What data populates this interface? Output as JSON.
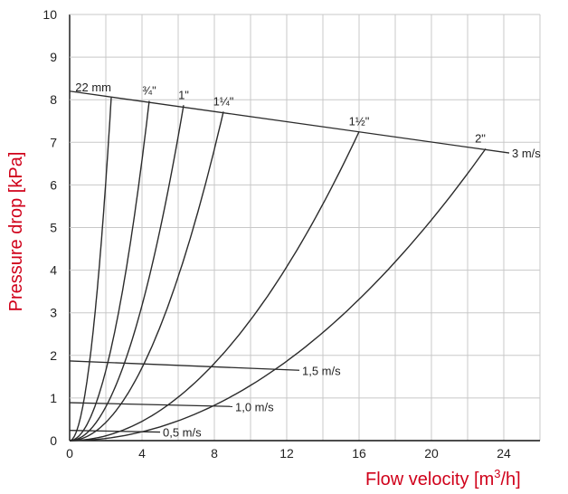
{
  "colors": {
    "axis_title": "#d0021b",
    "grid": "#c8c8c8",
    "curve": "#2b2b2b",
    "text": "#222222"
  },
  "chart_data": {
    "type": "line",
    "title": "",
    "xlabel": "Flow velocity [m³/h]",
    "xlabel_main": "Flow velocity [m",
    "xlabel_sup": "3",
    "xlabel_tail": "/h]",
    "ylabel": "Pressure drop [kPa]",
    "xlim": [
      0,
      26
    ],
    "ylim": [
      0,
      10
    ],
    "x_ticks": [
      "0",
      "4",
      "8",
      "12",
      "16",
      "20",
      "24"
    ],
    "y_ticks": [
      "0",
      "1",
      "2",
      "3",
      "4",
      "5",
      "6",
      "7",
      "8",
      "9",
      "10"
    ],
    "grid": true,
    "series": [
      {
        "name": "22 mm",
        "end": [
          2.3,
          8.05
        ]
      },
      {
        "name": "¾\"",
        "end": [
          4.4,
          7.97
        ]
      },
      {
        "name": "1\"",
        "end": [
          6.3,
          7.87
        ]
      },
      {
        "name": "1¼\"",
        "end": [
          8.5,
          7.72
        ]
      },
      {
        "name": "1½\"",
        "end": [
          16.0,
          7.25
        ]
      },
      {
        "name": "2\"",
        "end": [
          23.0,
          6.85
        ]
      }
    ],
    "velocity_lines": [
      {
        "name": "3 m/s",
        "points": [
          [
            0,
            8.2
          ],
          [
            24.3,
            6.75
          ]
        ]
      },
      {
        "name": "1,5 m/s",
        "points": [
          [
            0,
            1.87
          ],
          [
            12.7,
            1.65
          ]
        ]
      },
      {
        "name": "1,0 m/s",
        "points": [
          [
            0,
            0.89
          ],
          [
            9.0,
            0.8
          ]
        ]
      },
      {
        "name": "0,5 m/s",
        "points": [
          [
            0,
            0.24
          ],
          [
            5.0,
            0.2
          ]
        ]
      }
    ]
  }
}
